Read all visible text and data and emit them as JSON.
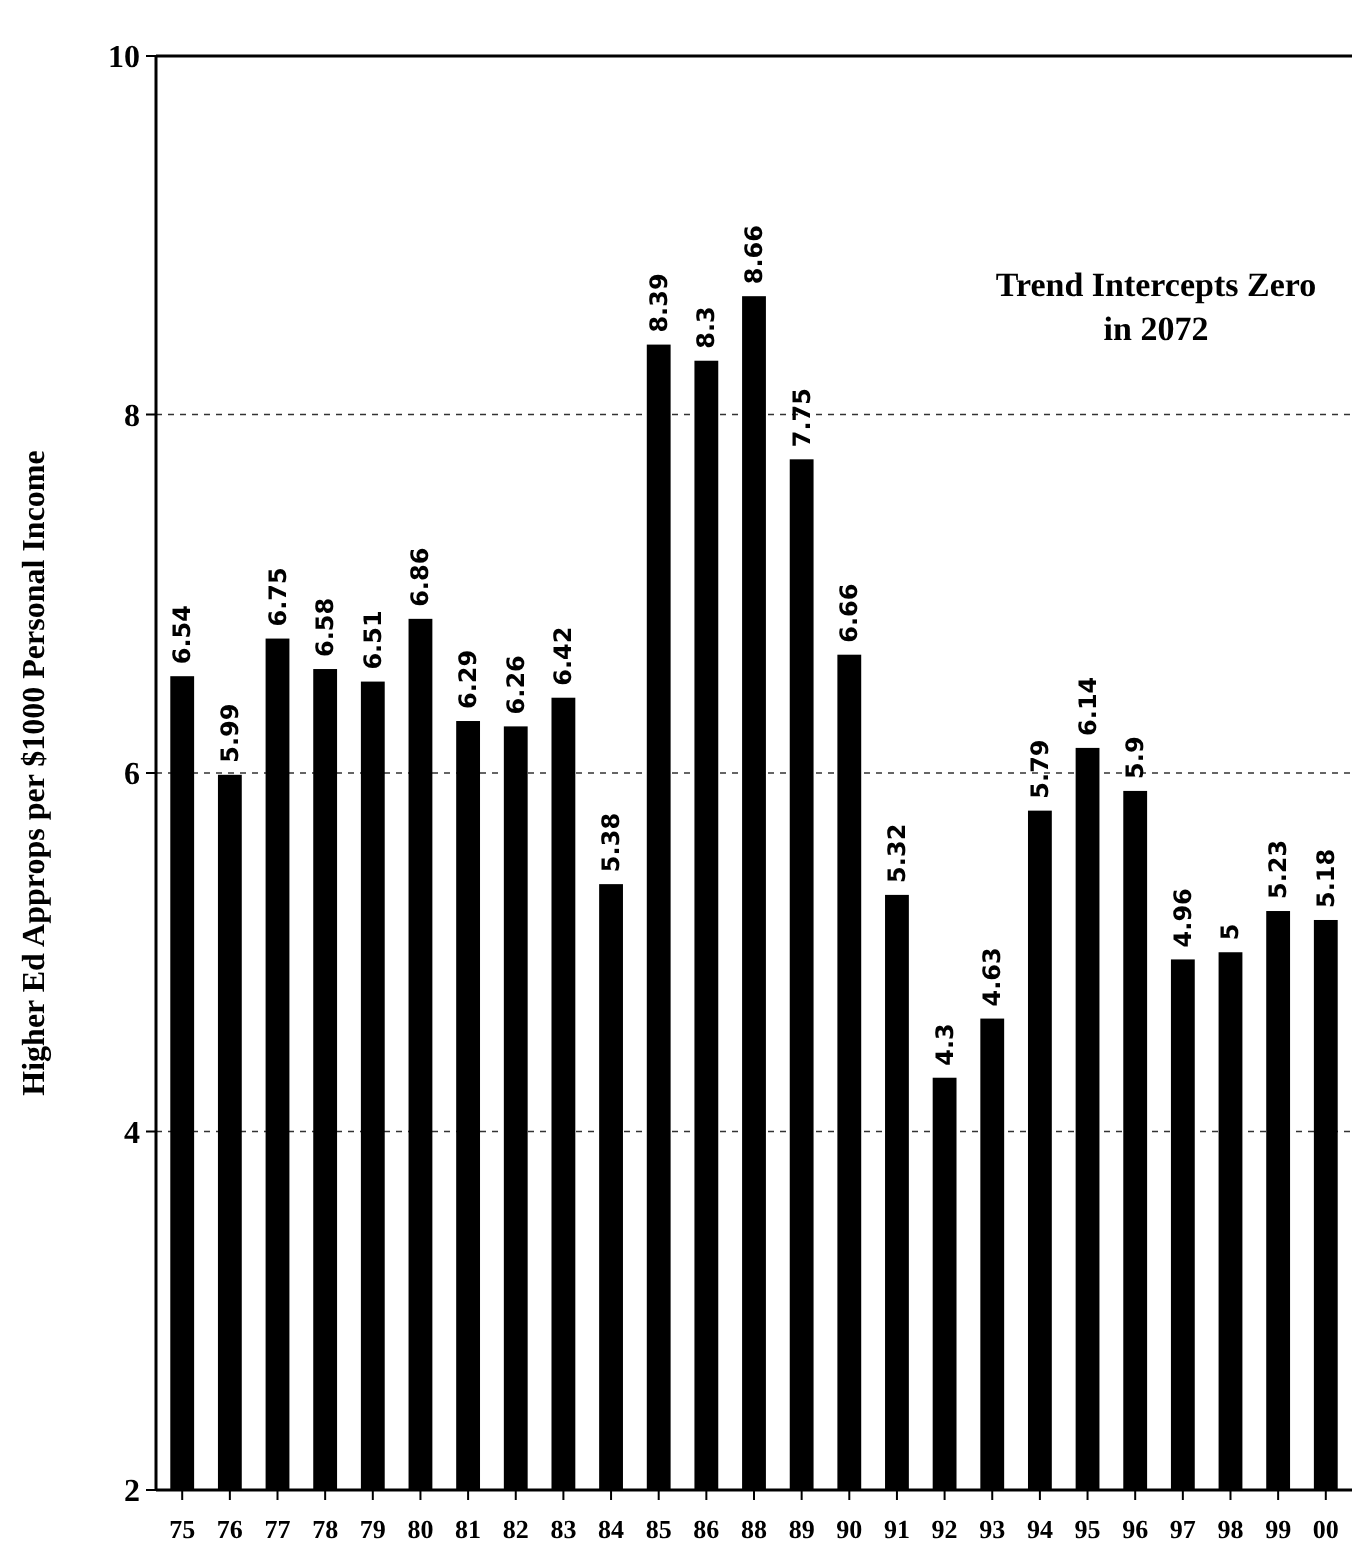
{
  "chart_data": {
    "type": "bar",
    "ylabel": "Higher Ed Approps per $1000 Personal Income",
    "categories": [
      "75",
      "76",
      "77",
      "78",
      "79",
      "80",
      "81",
      "82",
      "83",
      "84",
      "85",
      "86",
      "88",
      "89",
      "90",
      "91",
      "92",
      "93",
      "94",
      "95",
      "96",
      "97",
      "98",
      "99",
      "00"
    ],
    "values": [
      6.54,
      5.99,
      6.75,
      6.58,
      6.51,
      6.86,
      6.29,
      6.26,
      6.42,
      5.38,
      8.39,
      8.3,
      8.66,
      7.75,
      6.66,
      5.32,
      4.3,
      4.63,
      5.79,
      6.14,
      5.9,
      4.96,
      5,
      5.23,
      5.18
    ],
    "color": "#000000",
    "ylim": [
      2,
      10
    ],
    "yticks": [
      2,
      4,
      6,
      8,
      10
    ],
    "grid": "y",
    "data_labels": true,
    "annotations": [
      "Trend Intercepts Zero\nin 2072"
    ]
  }
}
